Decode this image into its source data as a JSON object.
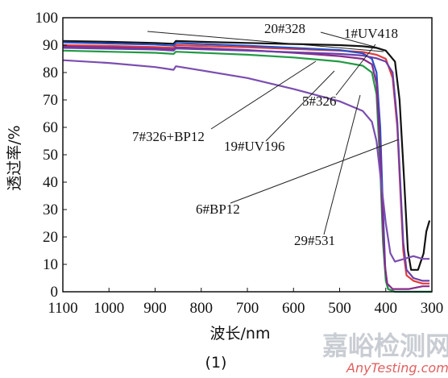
{
  "chart_data": {
    "type": "line",
    "xlabel": "波长/nm",
    "ylabel": "透过率/%",
    "caption": "(1)",
    "xlim": [
      1100,
      300
    ],
    "ylim": [
      0,
      100
    ],
    "x_ticks": [
      1100,
      1000,
      900,
      800,
      700,
      600,
      500,
      400,
      300
    ],
    "y_ticks": [
      0,
      10,
      20,
      30,
      40,
      50,
      60,
      70,
      80,
      90,
      100
    ],
    "grid": false,
    "series": [
      {
        "name": "20#328",
        "color": "#111111",
        "points": [
          [
            1100,
            91.5
          ],
          [
            1000,
            91.2
          ],
          [
            900,
            90.8
          ],
          [
            860,
            90.5
          ],
          [
            855,
            91.5
          ],
          [
            800,
            91.2
          ],
          [
            700,
            90.8
          ],
          [
            600,
            90.4
          ],
          [
            500,
            90
          ],
          [
            450,
            89.6
          ],
          [
            420,
            89
          ],
          [
            400,
            88
          ],
          [
            380,
            84
          ],
          [
            370,
            70
          ],
          [
            360,
            40
          ],
          [
            352,
            15
          ],
          [
            345,
            8
          ],
          [
            330,
            8
          ],
          [
            318,
            14
          ],
          [
            312,
            22
          ],
          [
            305,
            26
          ]
        ]
      },
      {
        "name": "1#UV418",
        "color": "#e23b3b",
        "points": [
          [
            1100,
            90
          ],
          [
            1000,
            89.7
          ],
          [
            900,
            89.3
          ],
          [
            860,
            89
          ],
          [
            855,
            90
          ],
          [
            800,
            89.7
          ],
          [
            700,
            89.2
          ],
          [
            600,
            88.6
          ],
          [
            500,
            88
          ],
          [
            450,
            87.5
          ],
          [
            420,
            86.5
          ],
          [
            400,
            85
          ],
          [
            385,
            78
          ],
          [
            375,
            60
          ],
          [
            368,
            35
          ],
          [
            362,
            15
          ],
          [
            355,
            6
          ],
          [
            340,
            4
          ],
          [
            320,
            3
          ],
          [
            305,
            3
          ]
        ]
      },
      {
        "name": "5#326",
        "color": "#2a4fc4",
        "points": [
          [
            1100,
            91
          ],
          [
            1000,
            90.6
          ],
          [
            900,
            90.2
          ],
          [
            860,
            89.8
          ],
          [
            855,
            90.8
          ],
          [
            800,
            90.4
          ],
          [
            700,
            89.8
          ],
          [
            600,
            89
          ],
          [
            500,
            88.2
          ],
          [
            450,
            87
          ],
          [
            430,
            85
          ],
          [
            420,
            80
          ],
          [
            412,
            60
          ],
          [
            406,
            30
          ],
          [
            401,
            8
          ],
          [
            395,
            1
          ],
          [
            380,
            0
          ],
          [
            300,
            0
          ]
        ]
      },
      {
        "name": "19#UV196",
        "color": "#229a44",
        "points": [
          [
            1100,
            88
          ],
          [
            1000,
            87.6
          ],
          [
            900,
            87.2
          ],
          [
            860,
            86.8
          ],
          [
            855,
            87.6
          ],
          [
            800,
            87.2
          ],
          [
            700,
            86.5
          ],
          [
            600,
            85.5
          ],
          [
            500,
            84
          ],
          [
            450,
            82.5
          ],
          [
            430,
            80
          ],
          [
            420,
            72
          ],
          [
            412,
            45
          ],
          [
            406,
            18
          ],
          [
            400,
            4
          ],
          [
            395,
            1
          ],
          [
            380,
            0
          ],
          [
            300,
            0
          ]
        ]
      },
      {
        "name": "7#326+BP12",
        "color": "#8a2a8a",
        "points": [
          [
            1100,
            89.5
          ],
          [
            1000,
            89.2
          ],
          [
            900,
            88.8
          ],
          [
            860,
            88.4
          ],
          [
            855,
            89.2
          ],
          [
            800,
            88.9
          ],
          [
            700,
            88.2
          ],
          [
            600,
            87.2
          ],
          [
            500,
            86
          ],
          [
            450,
            85
          ],
          [
            430,
            83
          ],
          [
            420,
            76
          ],
          [
            413,
            55
          ],
          [
            407,
            28
          ],
          [
            402,
            10
          ],
          [
            397,
            3
          ],
          [
            385,
            1
          ],
          [
            350,
            1
          ],
          [
            320,
            2
          ],
          [
            305,
            2
          ]
        ]
      },
      {
        "name": "6#BP12",
        "color": "#6a3fa8",
        "points": [
          [
            1100,
            89
          ],
          [
            1000,
            88.7
          ],
          [
            900,
            88.4
          ],
          [
            860,
            88
          ],
          [
            855,
            88.8
          ],
          [
            800,
            88.5
          ],
          [
            700,
            88
          ],
          [
            600,
            87.4
          ],
          [
            500,
            86.8
          ],
          [
            450,
            86.2
          ],
          [
            420,
            85.2
          ],
          [
            400,
            84
          ],
          [
            385,
            80
          ],
          [
            375,
            62
          ],
          [
            368,
            38
          ],
          [
            362,
            18
          ],
          [
            355,
            8
          ],
          [
            340,
            5
          ],
          [
            320,
            4
          ],
          [
            305,
            4
          ]
        ]
      },
      {
        "name": "29#531",
        "color": "#7a4db0",
        "points": [
          [
            1100,
            84.5
          ],
          [
            1000,
            83.5
          ],
          [
            900,
            82
          ],
          [
            860,
            81
          ],
          [
            855,
            82.3
          ],
          [
            800,
            80.8
          ],
          [
            700,
            78
          ],
          [
            600,
            74
          ],
          [
            500,
            69.5
          ],
          [
            450,
            66
          ],
          [
            430,
            62
          ],
          [
            420,
            55
          ],
          [
            410,
            40
          ],
          [
            400,
            25
          ],
          [
            390,
            14
          ],
          [
            380,
            11
          ],
          [
            360,
            12
          ],
          [
            340,
            13
          ],
          [
            320,
            12
          ],
          [
            305,
            12
          ]
        ]
      }
    ],
    "annotations": [
      "20#328",
      "1#UV418",
      "5#326",
      "7#326+BP12",
      "19#UV196",
      "6#BP12",
      "29#531"
    ]
  },
  "watermark": {
    "main": "嘉峪检测网",
    "sub": "AnyTesting.com"
  }
}
